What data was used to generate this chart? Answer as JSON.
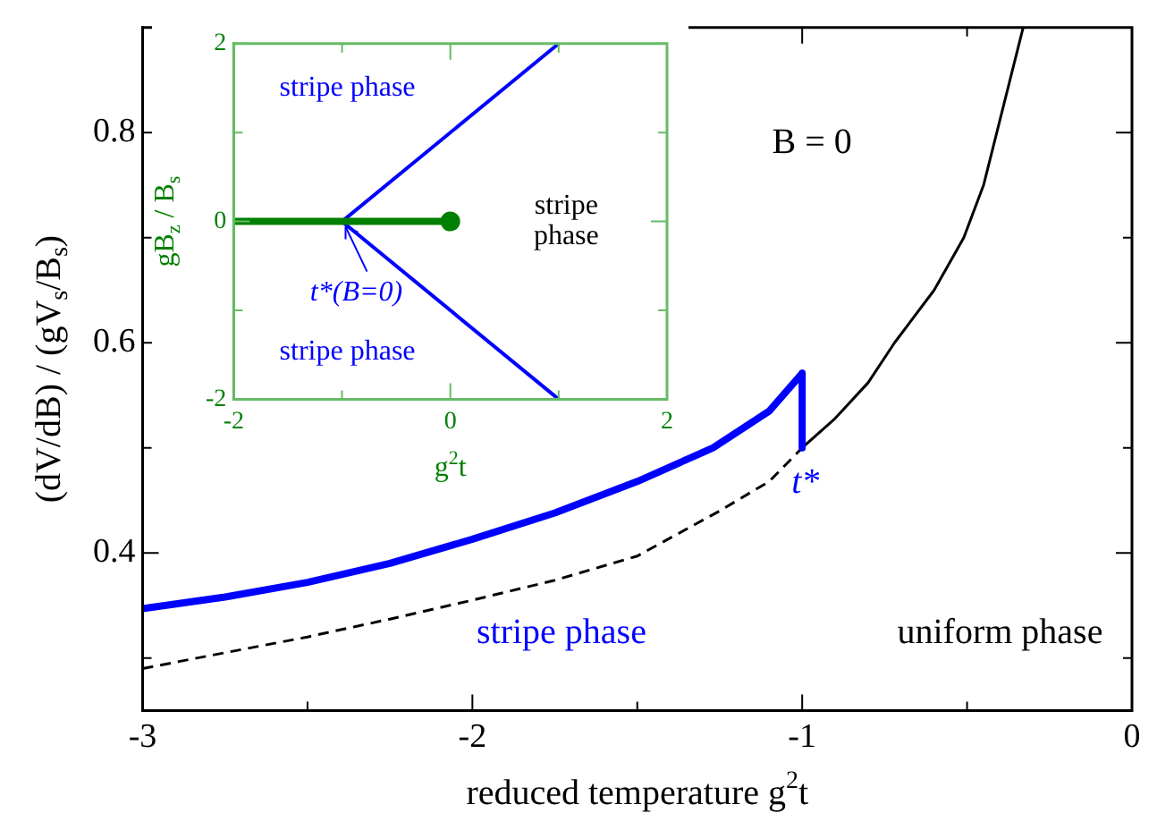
{
  "chart_data": [
    {
      "type": "line",
      "xlabel": "reduced temperature g$^{2}$t",
      "ylabel": "(dV/dB) / (gV$_{s}$/B$_{s}$)",
      "xlim": [
        -3,
        0
      ],
      "xticks": [
        -3,
        {
          "value": -2.5,
          "label": null
        },
        -2,
        {
          "value": -1.5,
          "label": null
        },
        -1,
        {
          "value": -0.5,
          "label": null
        },
        0
      ],
      "ylim": [
        0.25,
        0.9
      ],
      "yticks": [
        {
          "value": 0.3,
          "label": null
        },
        0.4,
        {
          "value": 0.5,
          "label": null
        },
        0.6,
        {
          "value": 0.7,
          "label": null
        },
        0.8
      ],
      "grid": false,
      "legend": false,
      "marker": "none",
      "series": [
        {
          "color": "#0000ff",
          "line_style": "solid",
          "x": [
            -3,
            -2.75,
            -2.5,
            -2.25,
            -2,
            -1.75,
            -1.5,
            -1.27,
            -1.1,
            -1,
            -1
          ],
          "values": [
            0.347,
            0.358,
            0.372,
            0.39,
            0.413,
            0.438,
            0.468,
            0.5,
            0.535,
            0.571,
            0.5
          ]
        },
        {
          "color": "#000000",
          "line_style": "dashed",
          "x": [
            -3,
            -2.75,
            -2.5,
            -2.25,
            -2,
            -1.75,
            -1.5,
            -1.25,
            -1.1,
            -1
          ],
          "values": [
            0.29,
            0.305,
            0.32,
            0.337,
            0.355,
            0.374,
            0.397,
            0.44,
            0.468,
            0.5
          ]
        },
        {
          "color": "#000000",
          "line_style": "solid",
          "x": [
            -1,
            -0.9,
            -0.8,
            -0.72,
            -0.6,
            -0.51,
            -0.45,
            -0.41,
            -0.37,
            -0.33
          ],
          "values": [
            0.5,
            0.528,
            0.562,
            0.6,
            0.65,
            0.7,
            0.75,
            0.8,
            0.85,
            0.9
          ]
        }
      ],
      "annotations": [
        "B = 0",
        "stripe phase",
        "uniform phase",
        {
          "text": "t*",
          "x": -1,
          "y": 0.5
        }
      ]
    },
    {
      "type": "line",
      "xlabel": "g$^{2}$t",
      "ylabel": "gB$_{z}$ / B$_{s}$",
      "xlim": [
        -2,
        2
      ],
      "xticks": [
        -2,
        {
          "value": -1,
          "label": null
        },
        0,
        {
          "value": 1,
          "label": null
        },
        2
      ],
      "ylim": [
        -2,
        2
      ],
      "yticks": [
        -2,
        {
          "value": -1,
          "label": null
        },
        0,
        {
          "value": 1,
          "label": null
        },
        2
      ],
      "grid": false,
      "legend": false,
      "series": [
        {
          "color": "#008000",
          "line_style": "solid",
          "marker": "none",
          "x": [
            -2,
            0
          ],
          "values": [
            0,
            0
          ]
        },
        {
          "type": "scatter",
          "color": "#008000",
          "marker": "circle",
          "x": [
            0
          ],
          "values": [
            0
          ]
        },
        {
          "color": "#0000ff",
          "line_style": "solid",
          "marker": "none",
          "x": [
            -1,
            1
          ],
          "values": [
            0,
            2
          ]
        },
        {
          "color": "#0000ff",
          "line_style": "solid",
          "marker": "none",
          "x": [
            -1,
            1
          ],
          "values": [
            0,
            -2
          ]
        }
      ],
      "annotations": [
        "stripe phase",
        "stripe phase",
        "stripe\nphase",
        {
          "text": "t*(B=0)",
          "x": -1,
          "y": 0
        }
      ]
    }
  ]
}
